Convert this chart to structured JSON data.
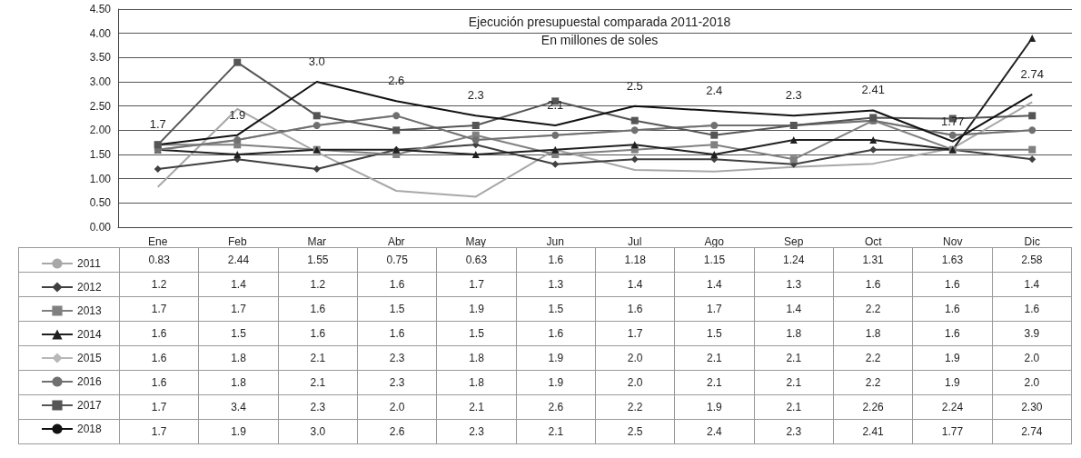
{
  "chart_data": {
    "type": "line",
    "title": "Ejecución presupuestal comparada 2011-2018",
    "subtitle": "En millones de soles",
    "categories": [
      "Ene",
      "Feb",
      "Mar",
      "Abr",
      "May",
      "Jun",
      "Jul",
      "Ago",
      "Sep",
      "Oct",
      "Nov",
      "Dic"
    ],
    "ylim": [
      0,
      4.5
    ],
    "yticks": [
      {
        "value": 0,
        "label": "0.00"
      },
      {
        "value": 0.5,
        "label": "0.50"
      },
      {
        "value": 1,
        "label": "1.00"
      },
      {
        "value": 1.5,
        "label": "1.50"
      },
      {
        "value": 2,
        "label": "2.00"
      },
      {
        "value": 2.5,
        "label": "2.50"
      },
      {
        "value": 3,
        "label": "3.00"
      },
      {
        "value": 3.5,
        "label": "3.50"
      },
      {
        "value": 4,
        "label": "4.00"
      },
      {
        "value": 4.5,
        "label": "4.50"
      }
    ],
    "grid": "y",
    "legend": "bottom left",
    "data_labels": true,
    "series": [
      {
        "name": "2011",
        "color": "#a8a8a8",
        "marker": "none",
        "values": [
          0.83,
          2.44,
          1.55,
          0.75,
          0.63,
          1.6,
          1.18,
          1.15,
          1.24,
          1.31,
          1.63,
          2.58
        ],
        "value_labels": [
          "0.83",
          "2.44",
          "1.55",
          "0.75",
          "0.63",
          "1.6",
          "1.18",
          "1.15",
          "1.24",
          "1.31",
          "1.63",
          "2.58"
        ]
      },
      {
        "name": "2012",
        "color": "#404040",
        "marker": "diamond",
        "values": [
          1.2,
          1.4,
          1.2,
          1.6,
          1.7,
          1.3,
          1.4,
          1.4,
          1.3,
          1.6,
          1.6,
          1.4
        ],
        "value_labels": [
          "1.2",
          "1.4",
          "1.2",
          "1.6",
          "1.7",
          "1.3",
          "1.4",
          "1.4",
          "1.3",
          "1.6",
          "1.6",
          "1.4"
        ]
      },
      {
        "name": "2013",
        "color": "#808080",
        "marker": "square",
        "values": [
          1.7,
          1.7,
          1.6,
          1.5,
          1.9,
          1.5,
          1.6,
          1.7,
          1.4,
          2.2,
          1.6,
          1.6
        ],
        "value_labels": [
          "1.7",
          "1.7",
          "1.6",
          "1.5",
          "1.9",
          "1.5",
          "1.6",
          "1.7",
          "1.4",
          "2.2",
          "1.6",
          "1.6"
        ]
      },
      {
        "name": "2014",
        "color": "#202020",
        "marker": "triangle",
        "values": [
          1.6,
          1.5,
          1.6,
          1.6,
          1.5,
          1.6,
          1.7,
          1.5,
          1.8,
          1.8,
          1.6,
          3.9
        ],
        "value_labels": [
          "1.6",
          "1.5",
          "1.6",
          "1.6",
          "1.5",
          "1.6",
          "1.7",
          "1.5",
          "1.8",
          "1.8",
          "1.6",
          "3.9"
        ]
      },
      {
        "name": "2015",
        "color": "#b8b8b8",
        "marker": "diamond",
        "values": [
          1.6,
          1.8,
          2.1,
          2.3,
          1.8,
          1.9,
          2.0,
          2.1,
          2.1,
          2.2,
          1.9,
          2.0
        ],
        "value_labels": [
          "1.6",
          "1.8",
          "2.1",
          "2.3",
          "1.8",
          "1.9",
          "2.0",
          "2.1",
          "2.1",
          "2.2",
          "1.9",
          "2.0"
        ]
      },
      {
        "name": "2016",
        "color": "#707070",
        "marker": "circle",
        "values": [
          1.6,
          1.8,
          2.1,
          2.3,
          1.8,
          1.9,
          2.0,
          2.1,
          2.1,
          2.2,
          1.9,
          2.0
        ],
        "value_labels": [
          "1.6",
          "1.8",
          "2.1",
          "2.3",
          "1.8",
          "1.9",
          "2.0",
          "2.1",
          "2.1",
          "2.2",
          "1.9",
          "2.0"
        ]
      },
      {
        "name": "2017",
        "color": "#555555",
        "marker": "square",
        "values": [
          1.7,
          3.4,
          2.3,
          2.0,
          2.1,
          2.6,
          2.2,
          1.9,
          2.1,
          2.26,
          2.24,
          2.3
        ],
        "value_labels": [
          "1.7",
          "3.4",
          "2.3",
          "2.0",
          "2.1",
          "2.6",
          "2.2",
          "1.9",
          "2.1",
          "2.26",
          "2.24",
          "2.30"
        ]
      },
      {
        "name": "2018",
        "color": "#111111",
        "marker": "none",
        "values": [
          1.7,
          1.9,
          3.0,
          2.6,
          2.3,
          2.1,
          2.5,
          2.4,
          2.3,
          2.41,
          1.77,
          2.74
        ],
        "value_labels": [
          "1.7",
          "1.9",
          "3.0",
          "2.6",
          "2.3",
          "2.1",
          "2.5",
          "2.4",
          "2.3",
          "2.41",
          "1.77",
          "2.74"
        ]
      }
    ],
    "annotations": [
      {
        "text": "1.7",
        "x": "Ene",
        "y": 1.7
      },
      {
        "text": "1.9",
        "x": "Feb",
        "y": 1.9
      },
      {
        "text": "3.0",
        "x": "Mar",
        "y": 3.0
      },
      {
        "text": "2.6",
        "x": "Abr",
        "y": 2.6
      },
      {
        "text": "2.3",
        "x": "May",
        "y": 2.3
      },
      {
        "text": "2.1",
        "x": "Jun",
        "y": 2.1
      },
      {
        "text": "2.5",
        "x": "Jul",
        "y": 2.5
      },
      {
        "text": "2.4",
        "x": "Ago",
        "y": 2.4
      },
      {
        "text": "2.3",
        "x": "Sep",
        "y": 2.3
      },
      {
        "text": "2.41",
        "x": "Oct",
        "y": 2.41
      },
      {
        "text": "1.77",
        "x": "Nov",
        "y": 1.77
      },
      {
        "text": "2.74",
        "x": "Dic",
        "y": 2.74
      }
    ]
  }
}
